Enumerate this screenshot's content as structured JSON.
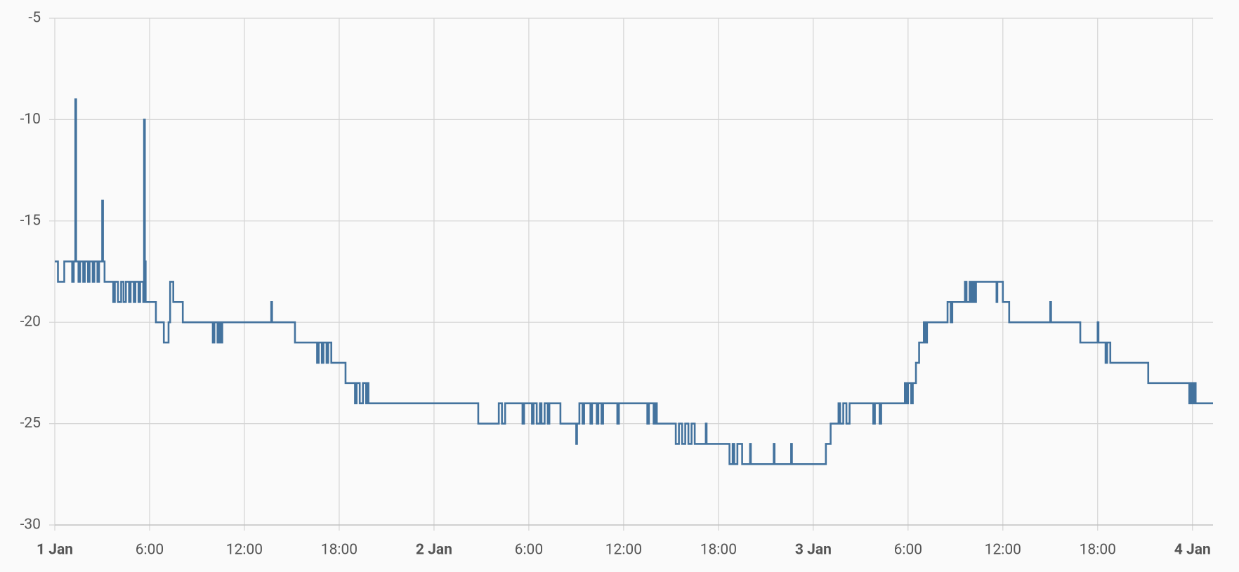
{
  "chart_data": {
    "type": "line",
    "step": true,
    "color": "#44739e",
    "xlim": [
      0,
      73.3
    ],
    "ylim": [
      -30,
      -5
    ],
    "yticks": [
      -5,
      -10,
      -15,
      -20,
      -25,
      -30
    ],
    "xticks": [
      {
        "value": 0,
        "label": "1 Jan"
      },
      {
        "value": 6,
        "label": "6:00"
      },
      {
        "value": 12,
        "label": "12:00"
      },
      {
        "value": 18,
        "label": "18:00"
      },
      {
        "value": 24,
        "label": "2 Jan"
      },
      {
        "value": 30,
        "label": "6:00"
      },
      {
        "value": 36,
        "label": "12:00"
      },
      {
        "value": 42,
        "label": "18:00"
      },
      {
        "value": 48,
        "label": "3 Jan"
      },
      {
        "value": 54,
        "label": "6:00"
      },
      {
        "value": 60,
        "label": "12:00"
      },
      {
        "value": 66,
        "label": "18:00"
      },
      {
        "value": 72,
        "label": "4 Jan"
      }
    ],
    "grid": true,
    "x": [
      0,
      0.2,
      0.6,
      1.1,
      1.2,
      1.3,
      1.35,
      1.5,
      1.6,
      1.8,
      1.9,
      2.1,
      2.2,
      2.4,
      2.5,
      2.7,
      2.8,
      3.0,
      3.05,
      3.15,
      3.7,
      3.8,
      4.0,
      4.2,
      4.35,
      4.5,
      4.7,
      4.8,
      5.0,
      5.1,
      5.3,
      5.4,
      5.6,
      5.65,
      5.7,
      5.75,
      6.4,
      6.9,
      7.2,
      7.3,
      7.5,
      8.1,
      10.0,
      10.1,
      10.3,
      10.4,
      10.5,
      10.6,
      13.7,
      13.75,
      15.2,
      16.6,
      16.7,
      16.9,
      17.0,
      17.2,
      17.3,
      17.5,
      18.4,
      19.0,
      19.1,
      19.3,
      19.5,
      19.7,
      19.8,
      19.85,
      26.8,
      28.1,
      28.3,
      28.5,
      29.6,
      29.7,
      30.2,
      30.3,
      30.5,
      30.7,
      30.8,
      31.0,
      31.2,
      31.3,
      32.0,
      33.0,
      33.05,
      33.2,
      33.4,
      33.5,
      33.9,
      34.0,
      34.3,
      34.4,
      34.6,
      34.7,
      35.6,
      35.7,
      37.5,
      37.6,
      37.9,
      38.0,
      38.1,
      39.3,
      39.5,
      39.7,
      39.9,
      40.1,
      40.3,
      40.5,
      41.2,
      41.25,
      42.7,
      42.9,
      43.0,
      43.2,
      43.5,
      44.0,
      44.05,
      45.5,
      45.55,
      46.6,
      46.65,
      48.8,
      49.1,
      49.6,
      49.7,
      49.9,
      50.1,
      50.3,
      51.8,
      51.9,
      52.2,
      52.3,
      53.8,
      53.9,
      54.0,
      54.2,
      54.3,
      54.5,
      54.7,
      55.0,
      55.1,
      55.2,
      56.5,
      56.7,
      56.8,
      57.6,
      57.7,
      57.9,
      58.0,
      58.1,
      58.2,
      58.3,
      59.6,
      59.65,
      60.0,
      60.4,
      63.0,
      63.05,
      64.9,
      66.0,
      66.05,
      66.5,
      66.6,
      66.8,
      69.2,
      71.8,
      71.9,
      72.0,
      72.1,
      72.2,
      73.3
    ],
    "values": [
      -17,
      -18,
      -17,
      -18,
      -17,
      -9,
      -17,
      -18,
      -17,
      -18,
      -17,
      -18,
      -17,
      -18,
      -17,
      -18,
      -17,
      -14,
      -17,
      -18,
      -19,
      -18,
      -19,
      -18,
      -19,
      -18,
      -19,
      -18,
      -19,
      -18,
      -19,
      -18,
      -19,
      -10,
      -17,
      -19,
      -20,
      -21,
      -20,
      -18,
      -19,
      -20,
      -21,
      -20,
      -21,
      -20,
      -21,
      -20,
      -19,
      -20,
      -21,
      -22,
      -21,
      -22,
      -21,
      -22,
      -21,
      -22,
      -23,
      -24,
      -23,
      -24,
      -23,
      -24,
      -23,
      -24,
      -25,
      -24,
      -25,
      -24,
      -25,
      -24,
      -25,
      -24,
      -25,
      -24,
      -25,
      -24,
      -25,
      -24,
      -25,
      -26,
      -25,
      -24,
      -25,
      -24,
      -25,
      -24,
      -25,
      -24,
      -25,
      -24,
      -25,
      -24,
      -25,
      -24,
      -25,
      -24,
      -25,
      -26,
      -25,
      -26,
      -25,
      -26,
      -25,
      -26,
      -25,
      -26,
      -27,
      -26,
      -27,
      -26,
      -27,
      -26,
      -27,
      -26,
      -27,
      -26,
      -27,
      -26,
      -25,
      -24,
      -25,
      -24,
      -25,
      -24,
      -25,
      -24,
      -25,
      -24,
      -23,
      -24,
      -23,
      -24,
      -23,
      -22,
      -21,
      -20,
      -21,
      -20,
      -19,
      -20,
      -19,
      -18,
      -19,
      -18,
      -19,
      -18,
      -19,
      -18,
      -19,
      -18,
      -19,
      -20,
      -19,
      -20,
      -21,
      -20,
      -21,
      -22,
      -21,
      -22,
      -23,
      -24,
      -23,
      -24,
      -23,
      -24,
      -24
    ]
  }
}
